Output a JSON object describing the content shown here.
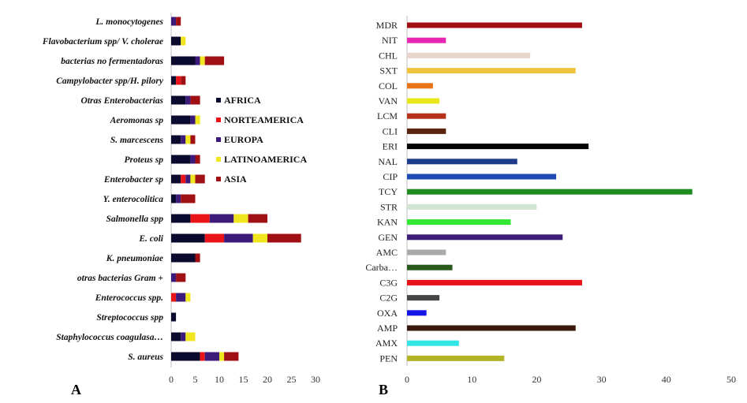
{
  "panels": {
    "a": "A",
    "b": "B"
  },
  "chart_data": [
    {
      "type": "bar",
      "orientation": "horizontal",
      "stacked": true,
      "categories": [
        "L. monocytogenes",
        "Flavobacterium spp/ V. cholerae",
        "bacterias no fermentadoras",
        "Campylobacter spp/H. pilory",
        "Otras Enterobacterias",
        "Aeromonas sp",
        "S. marcescens",
        "Proteus sp",
        "Enterobacter sp",
        "Y. enterocolitica",
        "Salmonella spp",
        "E. coli",
        "K. pneumoniae",
        "otras bacterias Gram +",
        "Enterococcus spp.",
        "Streptococcus spp",
        "Staphylococcus coagulasa…",
        "S. aureus"
      ],
      "series": [
        {
          "name": "AFRICA",
          "color": "#0a0a2e",
          "values": [
            0,
            2,
            5,
            1,
            3,
            4,
            2,
            4,
            2,
            1,
            4,
            7,
            5,
            0,
            0,
            1,
            2,
            6
          ]
        },
        {
          "name": "NORTEAMERICA",
          "color": "#e8141a",
          "values": [
            0,
            0,
            0,
            1,
            0,
            0,
            0,
            0,
            1,
            0,
            4,
            4,
            0,
            0,
            1,
            0,
            0,
            1
          ]
        },
        {
          "name": "EUROPA",
          "color": "#3b1a7a",
          "values": [
            1,
            0,
            1,
            0,
            1,
            1,
            1,
            1,
            1,
            1,
            5,
            6,
            0,
            1,
            2,
            0,
            1,
            3
          ]
        },
        {
          "name": "LATINOAMERICA",
          "color": "#f0e620",
          "values": [
            0,
            1,
            1,
            0,
            0,
            1,
            1,
            0,
            1,
            0,
            3,
            3,
            0,
            0,
            1,
            0,
            2,
            1
          ]
        },
        {
          "name": "ASIA",
          "color": "#a00f14",
          "values": [
            1,
            0,
            4,
            1,
            2,
            0,
            1,
            1,
            2,
            3,
            4,
            7,
            1,
            2,
            0,
            0,
            0,
            3
          ]
        }
      ],
      "xlim": [
        0,
        30
      ],
      "xticks": [
        "0",
        "5",
        "10",
        "15",
        "20",
        "25",
        "30"
      ],
      "legend": "inside-right"
    },
    {
      "type": "bar",
      "orientation": "horizontal",
      "categories": [
        "MDR",
        "NIT",
        "CHL",
        "SXT",
        "COL",
        "VAN",
        "LCM",
        "CLI",
        "ERI",
        "NAL",
        "CIP",
        "TCY",
        "STR",
        "KAN",
        "GEN",
        "AMC",
        "Carba…",
        "C3G",
        "C2G",
        "OXA",
        "AMP",
        "AMX",
        "PEN"
      ],
      "values": [
        27,
        6,
        19,
        26,
        4,
        5,
        6,
        6,
        28,
        17,
        23,
        44,
        20,
        16,
        24,
        6,
        7,
        27,
        5,
        3,
        26,
        8,
        15
      ],
      "colors": [
        "#a00f14",
        "#e627b4",
        "#e8d6cc",
        "#f0c43c",
        "#e8741a",
        "#e8e81a",
        "#b4321a",
        "#5a240f",
        "#050505",
        "#1e3c8c",
        "#1e4bb4",
        "#1e8c1e",
        "#d2e4d2",
        "#32e632",
        "#3c1e78",
        "#aaaaaa",
        "#285a1e",
        "#e8141a",
        "#464646",
        "#1414e6",
        "#3a190f",
        "#32e6e6",
        "#b4b428"
      ],
      "xlim": [
        0,
        50
      ],
      "xticks": [
        "0",
        "10",
        "20",
        "30",
        "40",
        "50"
      ]
    }
  ]
}
